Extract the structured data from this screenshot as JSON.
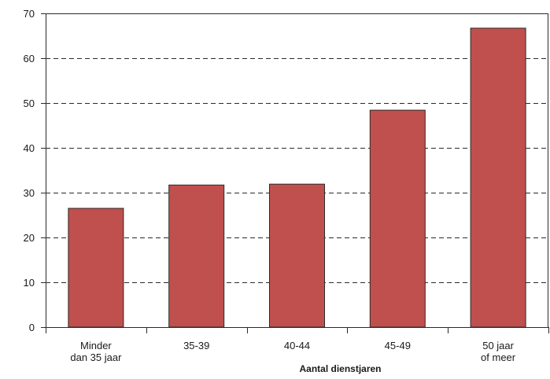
{
  "chart_data": {
    "type": "bar",
    "categories": [
      "Minder dan 35 jaar",
      "35-39",
      "40-44",
      "45-49",
      "50 jaar of meer"
    ],
    "category_label_lines": [
      [
        "Minder",
        "dan 35 jaar"
      ],
      [
        "35-39"
      ],
      [
        "40-44"
      ],
      [
        "45-49"
      ],
      [
        "50 jaar",
        "of meer"
      ]
    ],
    "values": [
      26.5,
      31.7,
      31.9,
      48.4,
      66.7
    ],
    "title": "",
    "xlabel": "Aantal dienstjaren",
    "ylabel": "",
    "ylim": [
      0,
      70
    ],
    "yticks": [
      0,
      10,
      20,
      30,
      40,
      50,
      60,
      70
    ],
    "grid": true,
    "grid_style": "dashed",
    "bar_color": "#c0504d",
    "bar_edge_color": "#2a2a2a"
  }
}
